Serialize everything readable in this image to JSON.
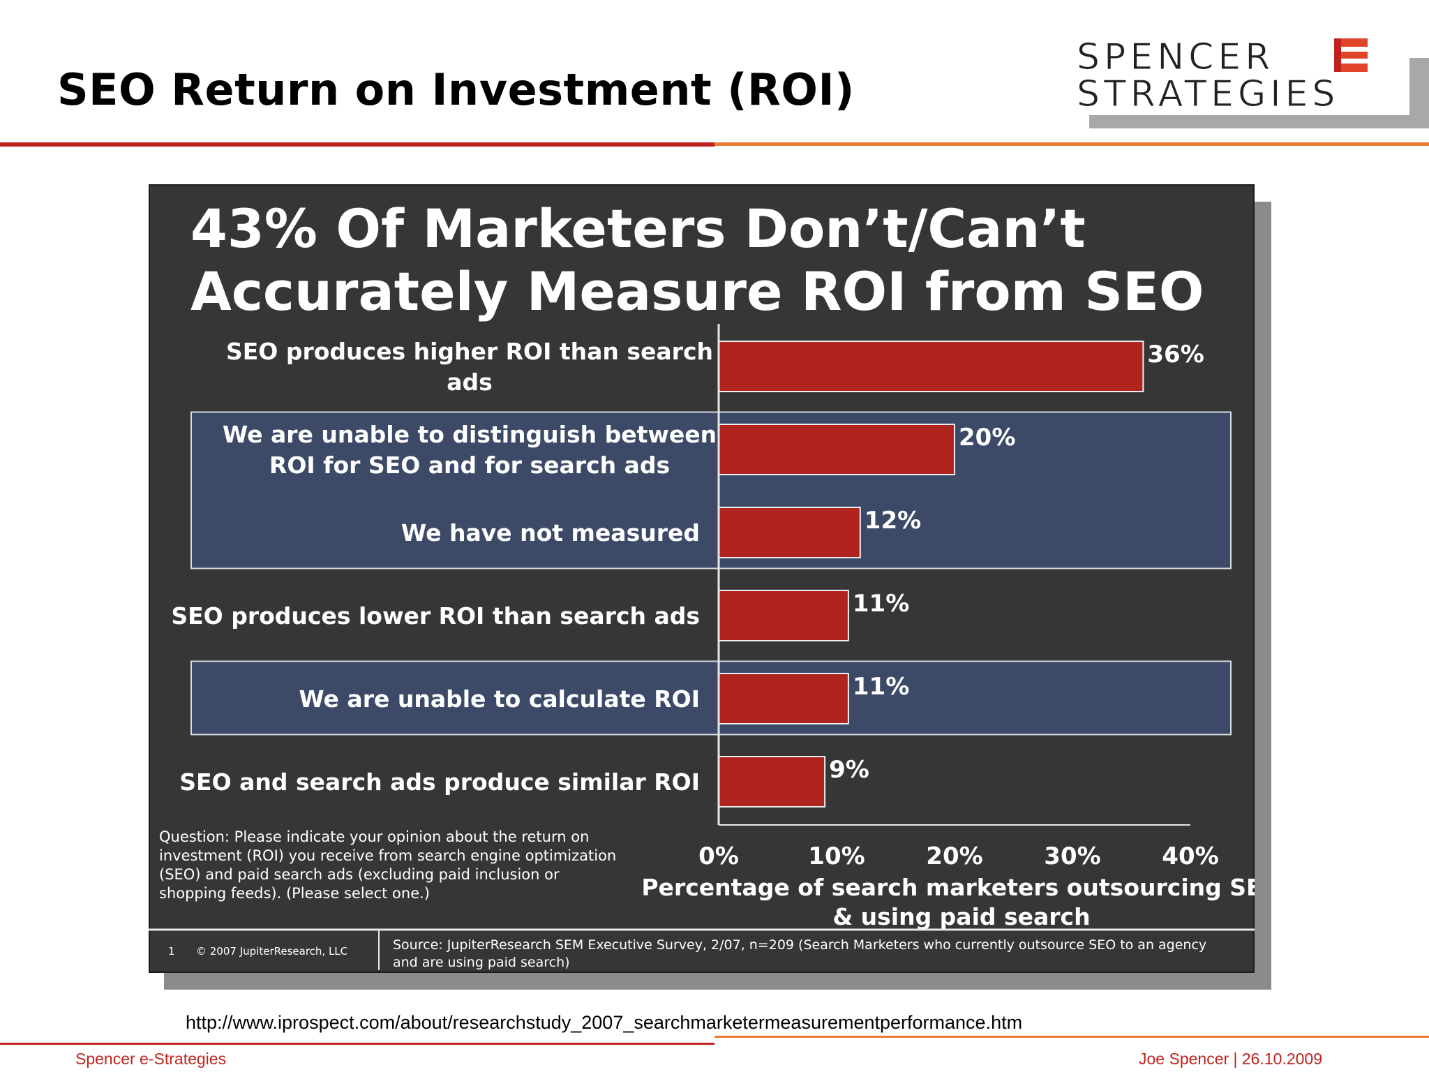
{
  "slide": {
    "title": "SEO Return on Investment (ROI)",
    "logo_line1": "SPENCER",
    "logo_line2": "STRATEGIES",
    "url": "http://www.iprospect.com/about/researchstudy_2007_searchmarketermeasurementperformance.htm",
    "footer_left": "Spencer e-Strategies",
    "footer_right": "Joe Spencer |  26.10.2009"
  },
  "colors": {
    "accent_red": "#c0231d",
    "accent_orange": "#e97a36",
    "bar": "#b02420",
    "panel": "#363636",
    "highlight": "#3c4a68"
  },
  "chart_data": {
    "type": "bar",
    "orientation": "horizontal",
    "title_line1": "43% Of Marketers Don’t/Can’t",
    "title_line2": "Accurately Measure ROI from SEO",
    "categories": [
      [
        "SEO produces higher ROI than search",
        "ads"
      ],
      [
        "We are unable to distinguish between",
        "ROI for SEO and for search ads"
      ],
      [
        "We have not measured"
      ],
      [
        "SEO produces lower ROI than search ads"
      ],
      [
        "We are unable to calculate ROI"
      ],
      [
        "SEO and search ads produce similar ROI"
      ]
    ],
    "values": [
      36,
      20,
      12,
      11,
      11,
      9
    ],
    "value_labels": [
      "36%",
      "20%",
      "12%",
      "11%",
      "11%",
      "9%"
    ],
    "highlighted_groups": [
      [
        1,
        2
      ],
      [
        4
      ]
    ],
    "xlim": [
      0,
      40
    ],
    "x_ticks": [
      "0%",
      "10%",
      "20%",
      "30%",
      "40%"
    ],
    "xlabel_line1": "Percentage of search marketers outsourcing SEO",
    "xlabel_line2": "& using paid search",
    "question": [
      "Question:  Please indicate your opinion about the return on",
      "investment (ROI) you receive from search engine optimization",
      "(SEO) and paid search ads (excluding paid inclusion or",
      "shopping feeds).  (Please select one.)"
    ],
    "page_number": "1",
    "copyright": "© 2007  JupiterResearch, LLC",
    "source": [
      "Source: JupiterResearch SEM Executive Survey, 2/07, n=209 (Search Marketers who currently outsource SEO to an agency",
      "and are using paid search)"
    ]
  }
}
